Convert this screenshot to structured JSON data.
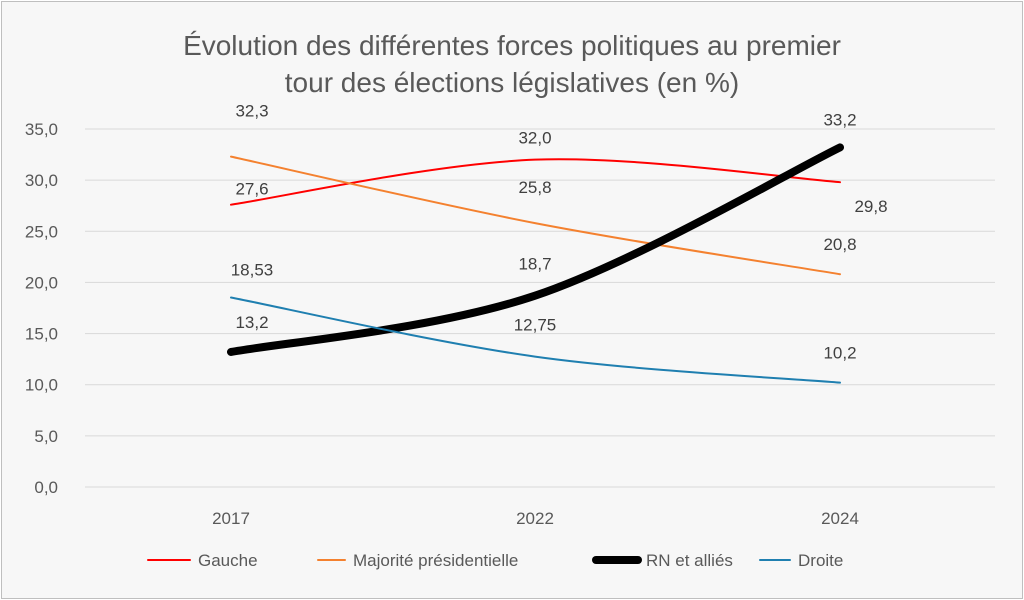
{
  "chart_data": {
    "type": "line",
    "title_lines": [
      "Évolution des différentes forces politiques au premier",
      "tour des élections législatives (en %)"
    ],
    "categories": [
      "2017",
      "2022",
      "2024"
    ],
    "ylim": [
      0,
      35
    ],
    "yticks": [
      "0,0",
      "5,0",
      "10,0",
      "15,0",
      "20,0",
      "25,0",
      "30,0",
      "35,0"
    ],
    "grid": true,
    "smoothed": true,
    "legend_position": "bottom",
    "series": [
      {
        "name": "Gauche",
        "values": [
          27.6,
          32.0,
          29.8
        ],
        "labels": [
          "27,6",
          "32,0",
          "29,8"
        ],
        "color": "#ff0000"
      },
      {
        "name": "Majorité présidentielle",
        "values": [
          32.3,
          25.8,
          20.8
        ],
        "labels": [
          "32,3",
          "25,8",
          "20,8"
        ],
        "color": "#f4812f"
      },
      {
        "name": "RN et alliés",
        "values": [
          13.2,
          18.7,
          33.2
        ],
        "labels": [
          "13,2",
          "18,7",
          "33,2"
        ],
        "color": "#000000"
      },
      {
        "name": "Droite",
        "values": [
          18.53,
          12.75,
          10.2
        ],
        "labels": [
          "18,53",
          "12,75",
          "10,2"
        ],
        "color": "#1f7fb0"
      }
    ]
  }
}
